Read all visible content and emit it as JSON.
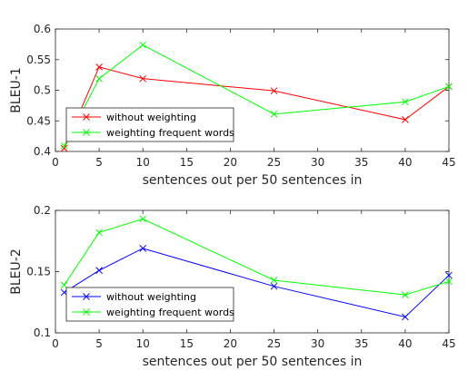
{
  "chart_data": [
    {
      "type": "line",
      "xlabel": "sentences out per 50 sentences in",
      "ylabel": "BLEU-1",
      "xlim": [
        0,
        45
      ],
      "ylim": [
        0.4,
        0.6
      ],
      "xticks": [
        0,
        5,
        10,
        15,
        20,
        25,
        30,
        35,
        40,
        45
      ],
      "xtick_labels": [
        "0",
        "5",
        "10",
        "15",
        "20",
        "25",
        "30",
        "35",
        "40",
        "45"
      ],
      "yticks": [
        0.4,
        0.45,
        0.5,
        0.55,
        0.6
      ],
      "ytick_labels": [
        "0.4",
        "0.45",
        "0.5",
        "0.55",
        "0.6"
      ],
      "grid": false,
      "legend": "bottom-left",
      "x": [
        1,
        5,
        10,
        25,
        40,
        45
      ],
      "series": [
        {
          "name": "without weighting",
          "color": "#ff0000",
          "marker": "x",
          "values": [
            0.405,
            0.538,
            0.519,
            0.499,
            0.452,
            0.506
          ]
        },
        {
          "name": "weighting frequent words",
          "color": "#00ff00",
          "marker": "x",
          "values": [
            0.409,
            0.519,
            0.574,
            0.461,
            0.481,
            0.506
          ]
        }
      ]
    },
    {
      "type": "line",
      "xlabel": "sentences out per 50 sentences in",
      "ylabel": "BLEU-2",
      "xlim": [
        0,
        45
      ],
      "ylim": [
        0.1,
        0.2
      ],
      "xticks": [
        0,
        5,
        10,
        15,
        20,
        25,
        30,
        35,
        40,
        45
      ],
      "xtick_labels": [
        "0",
        "5",
        "10",
        "15",
        "20",
        "25",
        "30",
        "35",
        "40",
        "45"
      ],
      "yticks": [
        0.1,
        0.15,
        0.2
      ],
      "ytick_labels": [
        "0.1",
        "0.15",
        "0.2"
      ],
      "grid": false,
      "legend": "bottom-left",
      "x": [
        1,
        5,
        10,
        25,
        40,
        45
      ],
      "series": [
        {
          "name": "without weighting",
          "color": "#0000ff",
          "marker": "x",
          "values": [
            0.133,
            0.151,
            0.169,
            0.138,
            0.113,
            0.147
          ]
        },
        {
          "name": "weighting frequent words",
          "color": "#00ff00",
          "marker": "x",
          "values": [
            0.139,
            0.182,
            0.193,
            0.143,
            0.131,
            0.142
          ]
        }
      ]
    }
  ]
}
